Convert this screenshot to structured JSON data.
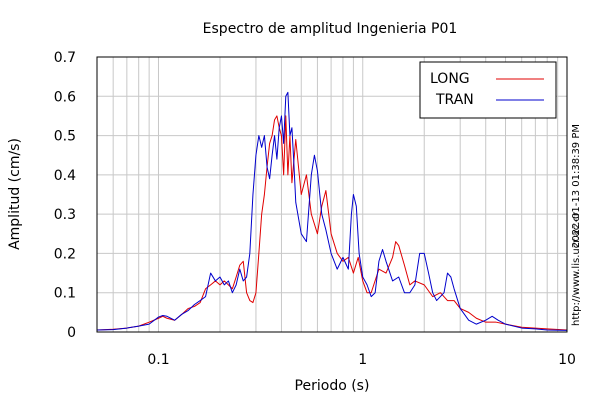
{
  "chart_data": {
    "type": "line",
    "title": "Espectro de amplitud Ingenieria P01",
    "xlabel": "Periodo (s)",
    "ylabel": "Amplitud (cm/s)",
    "x_scale": "log",
    "xlim": [
      0.05,
      10
    ],
    "ylim": [
      0,
      0.7
    ],
    "grid": true,
    "legend_position": "top-right",
    "x_ticks": [
      {
        "value": 0.1,
        "label": "0.1"
      },
      {
        "value": 1,
        "label": "1"
      },
      {
        "value": 10,
        "label": "10"
      }
    ],
    "y_ticks": [
      {
        "value": 0,
        "label": "0"
      },
      {
        "value": 0.1,
        "label": "0.1"
      },
      {
        "value": 0.2,
        "label": "0.2"
      },
      {
        "value": 0.3,
        "label": "0.3"
      },
      {
        "value": 0.4,
        "label": "0.4"
      },
      {
        "value": 0.5,
        "label": "0.5"
      },
      {
        "value": 0.6,
        "label": "0.6"
      },
      {
        "value": 0.7,
        "label": "0.7"
      }
    ],
    "series": [
      {
        "name": "LONG",
        "color": "#e00000",
        "points": [
          [
            0.05,
            0.005
          ],
          [
            0.06,
            0.007
          ],
          [
            0.07,
            0.01
          ],
          [
            0.08,
            0.015
          ],
          [
            0.09,
            0.025
          ],
          [
            0.1,
            0.035
          ],
          [
            0.105,
            0.04
          ],
          [
            0.11,
            0.035
          ],
          [
            0.12,
            0.03
          ],
          [
            0.13,
            0.045
          ],
          [
            0.14,
            0.06
          ],
          [
            0.15,
            0.065
          ],
          [
            0.16,
            0.075
          ],
          [
            0.17,
            0.11
          ],
          [
            0.18,
            0.12
          ],
          [
            0.19,
            0.13
          ],
          [
            0.2,
            0.12
          ],
          [
            0.21,
            0.13
          ],
          [
            0.22,
            0.12
          ],
          [
            0.23,
            0.11
          ],
          [
            0.24,
            0.14
          ],
          [
            0.25,
            0.17
          ],
          [
            0.26,
            0.18
          ],
          [
            0.27,
            0.1
          ],
          [
            0.28,
            0.08
          ],
          [
            0.29,
            0.075
          ],
          [
            0.3,
            0.1
          ],
          [
            0.31,
            0.2
          ],
          [
            0.32,
            0.3
          ],
          [
            0.33,
            0.35
          ],
          [
            0.34,
            0.42
          ],
          [
            0.35,
            0.48
          ],
          [
            0.36,
            0.5
          ],
          [
            0.37,
            0.54
          ],
          [
            0.38,
            0.55
          ],
          [
            0.39,
            0.52
          ],
          [
            0.4,
            0.5
          ],
          [
            0.41,
            0.4
          ],
          [
            0.42,
            0.55
          ],
          [
            0.43,
            0.4
          ],
          [
            0.44,
            0.5
          ],
          [
            0.45,
            0.38
          ],
          [
            0.47,
            0.49
          ],
          [
            0.5,
            0.35
          ],
          [
            0.53,
            0.4
          ],
          [
            0.56,
            0.3
          ],
          [
            0.6,
            0.25
          ],
          [
            0.63,
            0.32
          ],
          [
            0.66,
            0.36
          ],
          [
            0.7,
            0.25
          ],
          [
            0.75,
            0.2
          ],
          [
            0.8,
            0.18
          ],
          [
            0.85,
            0.19
          ],
          [
            0.9,
            0.15
          ],
          [
            0.95,
            0.19
          ],
          [
            1.0,
            0.13
          ],
          [
            1.05,
            0.1
          ],
          [
            1.1,
            0.1
          ],
          [
            1.2,
            0.16
          ],
          [
            1.3,
            0.15
          ],
          [
            1.4,
            0.19
          ],
          [
            1.45,
            0.23
          ],
          [
            1.5,
            0.22
          ],
          [
            1.6,
            0.17
          ],
          [
            1.7,
            0.12
          ],
          [
            1.8,
            0.13
          ],
          [
            2.0,
            0.12
          ],
          [
            2.2,
            0.09
          ],
          [
            2.4,
            0.1
          ],
          [
            2.6,
            0.08
          ],
          [
            2.8,
            0.08
          ],
          [
            3.0,
            0.06
          ],
          [
            3.3,
            0.05
          ],
          [
            3.6,
            0.035
          ],
          [
            4.0,
            0.025
          ],
          [
            4.5,
            0.025
          ],
          [
            5.0,
            0.02
          ],
          [
            6.0,
            0.012
          ],
          [
            7.0,
            0.01
          ],
          [
            8.0,
            0.008
          ],
          [
            10.0,
            0.005
          ]
        ]
      },
      {
        "name": "TRAN",
        "color": "#0000cc",
        "points": [
          [
            0.05,
            0.005
          ],
          [
            0.06,
            0.006
          ],
          [
            0.07,
            0.01
          ],
          [
            0.08,
            0.015
          ],
          [
            0.09,
            0.02
          ],
          [
            0.1,
            0.038
          ],
          [
            0.105,
            0.042
          ],
          [
            0.11,
            0.04
          ],
          [
            0.12,
            0.03
          ],
          [
            0.13,
            0.045
          ],
          [
            0.14,
            0.055
          ],
          [
            0.15,
            0.07
          ],
          [
            0.16,
            0.08
          ],
          [
            0.17,
            0.09
          ],
          [
            0.18,
            0.15
          ],
          [
            0.19,
            0.13
          ],
          [
            0.2,
            0.14
          ],
          [
            0.21,
            0.12
          ],
          [
            0.22,
            0.13
          ],
          [
            0.23,
            0.1
          ],
          [
            0.24,
            0.12
          ],
          [
            0.25,
            0.16
          ],
          [
            0.26,
            0.13
          ],
          [
            0.27,
            0.14
          ],
          [
            0.28,
            0.2
          ],
          [
            0.29,
            0.35
          ],
          [
            0.3,
            0.45
          ],
          [
            0.31,
            0.5
          ],
          [
            0.32,
            0.47
          ],
          [
            0.33,
            0.5
          ],
          [
            0.34,
            0.42
          ],
          [
            0.35,
            0.39
          ],
          [
            0.36,
            0.45
          ],
          [
            0.37,
            0.5
          ],
          [
            0.38,
            0.44
          ],
          [
            0.39,
            0.52
          ],
          [
            0.4,
            0.55
          ],
          [
            0.41,
            0.48
          ],
          [
            0.42,
            0.6
          ],
          [
            0.43,
            0.61
          ],
          [
            0.44,
            0.5
          ],
          [
            0.45,
            0.52
          ],
          [
            0.46,
            0.43
          ],
          [
            0.47,
            0.33
          ],
          [
            0.5,
            0.25
          ],
          [
            0.53,
            0.23
          ],
          [
            0.56,
            0.4
          ],
          [
            0.58,
            0.45
          ],
          [
            0.6,
            0.41
          ],
          [
            0.63,
            0.3
          ],
          [
            0.66,
            0.26
          ],
          [
            0.7,
            0.2
          ],
          [
            0.75,
            0.16
          ],
          [
            0.8,
            0.19
          ],
          [
            0.85,
            0.16
          ],
          [
            0.88,
            0.3
          ],
          [
            0.9,
            0.35
          ],
          [
            0.93,
            0.32
          ],
          [
            0.96,
            0.2
          ],
          [
            1.0,
            0.14
          ],
          [
            1.05,
            0.12
          ],
          [
            1.1,
            0.09
          ],
          [
            1.15,
            0.1
          ],
          [
            1.2,
            0.18
          ],
          [
            1.25,
            0.21
          ],
          [
            1.3,
            0.18
          ],
          [
            1.4,
            0.13
          ],
          [
            1.5,
            0.14
          ],
          [
            1.6,
            0.1
          ],
          [
            1.7,
            0.1
          ],
          [
            1.8,
            0.12
          ],
          [
            1.9,
            0.2
          ],
          [
            2.0,
            0.2
          ],
          [
            2.1,
            0.15
          ],
          [
            2.2,
            0.1
          ],
          [
            2.3,
            0.08
          ],
          [
            2.5,
            0.1
          ],
          [
            2.6,
            0.15
          ],
          [
            2.7,
            0.14
          ],
          [
            2.8,
            0.11
          ],
          [
            3.0,
            0.06
          ],
          [
            3.3,
            0.03
          ],
          [
            3.6,
            0.02
          ],
          [
            4.0,
            0.03
          ],
          [
            4.3,
            0.04
          ],
          [
            4.6,
            0.03
          ],
          [
            5.0,
            0.02
          ],
          [
            6.0,
            0.01
          ],
          [
            7.0,
            0.008
          ],
          [
            8.0,
            0.005
          ],
          [
            10.0,
            0.004
          ]
        ]
      }
    ]
  },
  "side_annotations": {
    "timestamp": "2022-01-13 01:38:39 PM",
    "url": "http://www.lis.ucr.ac.cr"
  }
}
